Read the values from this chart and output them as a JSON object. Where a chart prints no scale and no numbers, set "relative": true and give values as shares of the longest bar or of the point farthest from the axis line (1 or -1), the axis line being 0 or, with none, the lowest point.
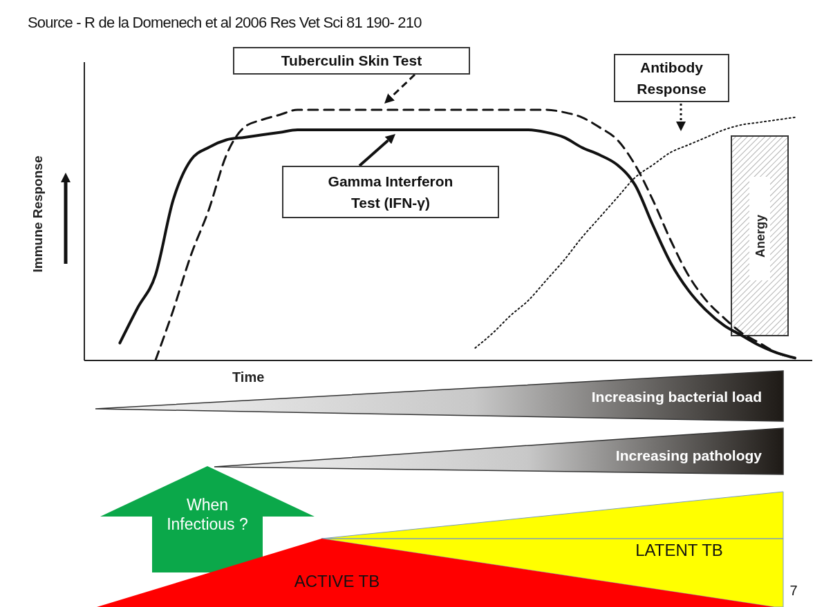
{
  "chart_data": {
    "type": "line",
    "relative": true,
    "xlabel": "Time",
    "ylabel": "Immune Response",
    "marker": "none",
    "categories": [
      null,
      null,
      null,
      null,
      null,
      null,
      null,
      null,
      null,
      null,
      null,
      null,
      null,
      null,
      null,
      null,
      null,
      null,
      null,
      null,
      null,
      null,
      null,
      null,
      null,
      null,
      null,
      null,
      null,
      null,
      null,
      null,
      null,
      null,
      null,
      null,
      null,
      null,
      null,
      null,
      null
    ],
    "series": [
      {
        "name": "Tuberculin Skin Test",
        "color": "#111111",
        "line_style": "dashed",
        "values": [
          null,
          null,
          null,
          null,
          0,
          0.2,
          0.42,
          0.6,
          0.82,
          0.93,
          0.96,
          0.98,
          1,
          1,
          1,
          1,
          1,
          1,
          1,
          1,
          1,
          1,
          1,
          1,
          1,
          1,
          1,
          0.99,
          0.97,
          0.93,
          0.88,
          0.78,
          0.64,
          0.48,
          0.34,
          0.24,
          0.17,
          0.11,
          0.07,
          0.03,
          0.01
        ]
      },
      {
        "name": "Antibody Response",
        "color": "#111111",
        "line_style": "dotted",
        "values": [
          null,
          null,
          null,
          null,
          null,
          null,
          null,
          null,
          null,
          null,
          null,
          null,
          null,
          null,
          null,
          null,
          null,
          null,
          null,
          null,
          null,
          null,
          0.05,
          0.11,
          0.18,
          0.24,
          0.32,
          0.4,
          0.49,
          0.57,
          0.65,
          0.73,
          0.78,
          0.83,
          0.86,
          0.89,
          0.92,
          0.94,
          0.95,
          0.96,
          0.97
        ]
      },
      {
        "name": "Gamma Interferon Test (IFN-γ)",
        "color": "#111111",
        "line_style": "solid",
        "values": [
          null,
          null,
          0.07,
          0.21,
          0.34,
          0.64,
          0.8,
          0.85,
          0.88,
          0.89,
          0.9,
          0.91,
          0.92,
          0.92,
          0.92,
          0.92,
          0.92,
          0.92,
          0.92,
          0.92,
          0.92,
          0.92,
          0.92,
          0.92,
          0.92,
          0.92,
          0.91,
          0.89,
          0.85,
          0.82,
          0.78,
          0.7,
          0.54,
          0.39,
          0.28,
          0.2,
          0.14,
          0.1,
          0.06,
          0.03,
          0.01
        ]
      }
    ],
    "annotations": [
      "Source - R de la Domenech et al 2006 Res Vet  Sci 81 190- 210",
      "Anergy",
      "Increasing bacterial load",
      "Increasing pathology",
      "When Infectious ?",
      "LATENT TB",
      "ACTIVE TB",
      "7"
    ]
  }
}
